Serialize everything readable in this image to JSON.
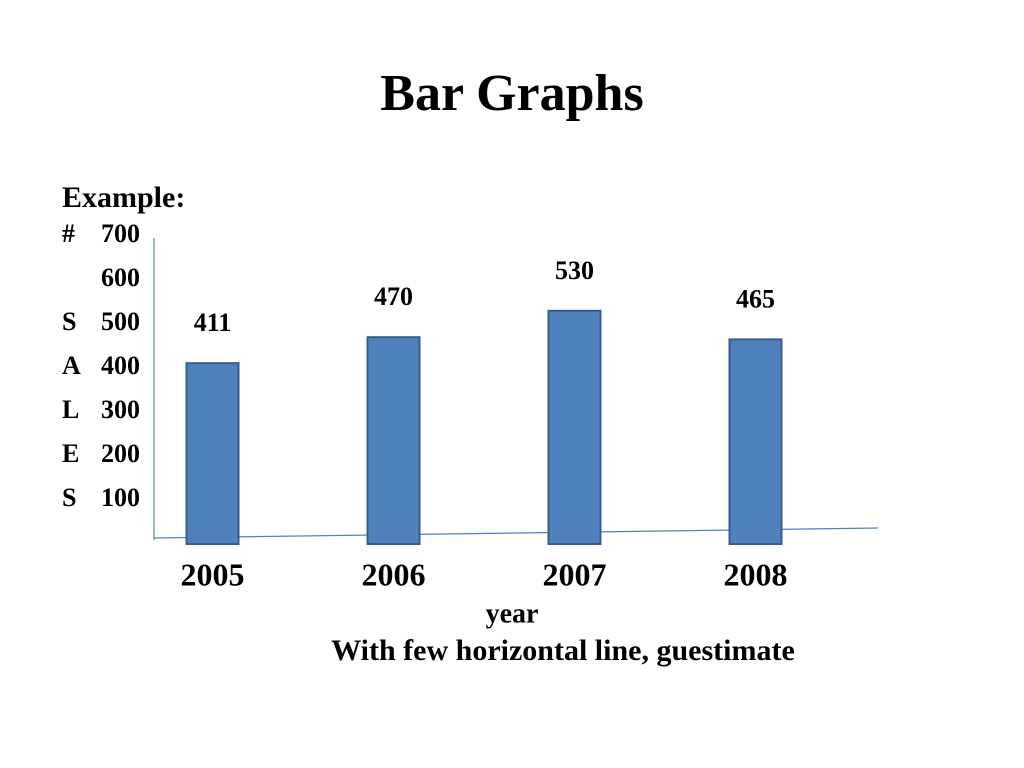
{
  "chart_data": {
    "type": "bar",
    "title": "Bar Graphs",
    "subtitle": "Example:",
    "categories": [
      "2005",
      "2006",
      "2007",
      "2008"
    ],
    "values": [
      411,
      470,
      530,
      465
    ],
    "color": "#4f81bd",
    "ylim": [
      0,
      700
    ],
    "yticks": [
      100,
      200,
      300,
      400,
      500,
      600,
      700
    ],
    "ylabel_letters": [
      "S",
      "E",
      "L",
      "A",
      "S",
      null,
      "#"
    ],
    "xlabel": "year",
    "note": "With few horizontal line, guestimate"
  }
}
